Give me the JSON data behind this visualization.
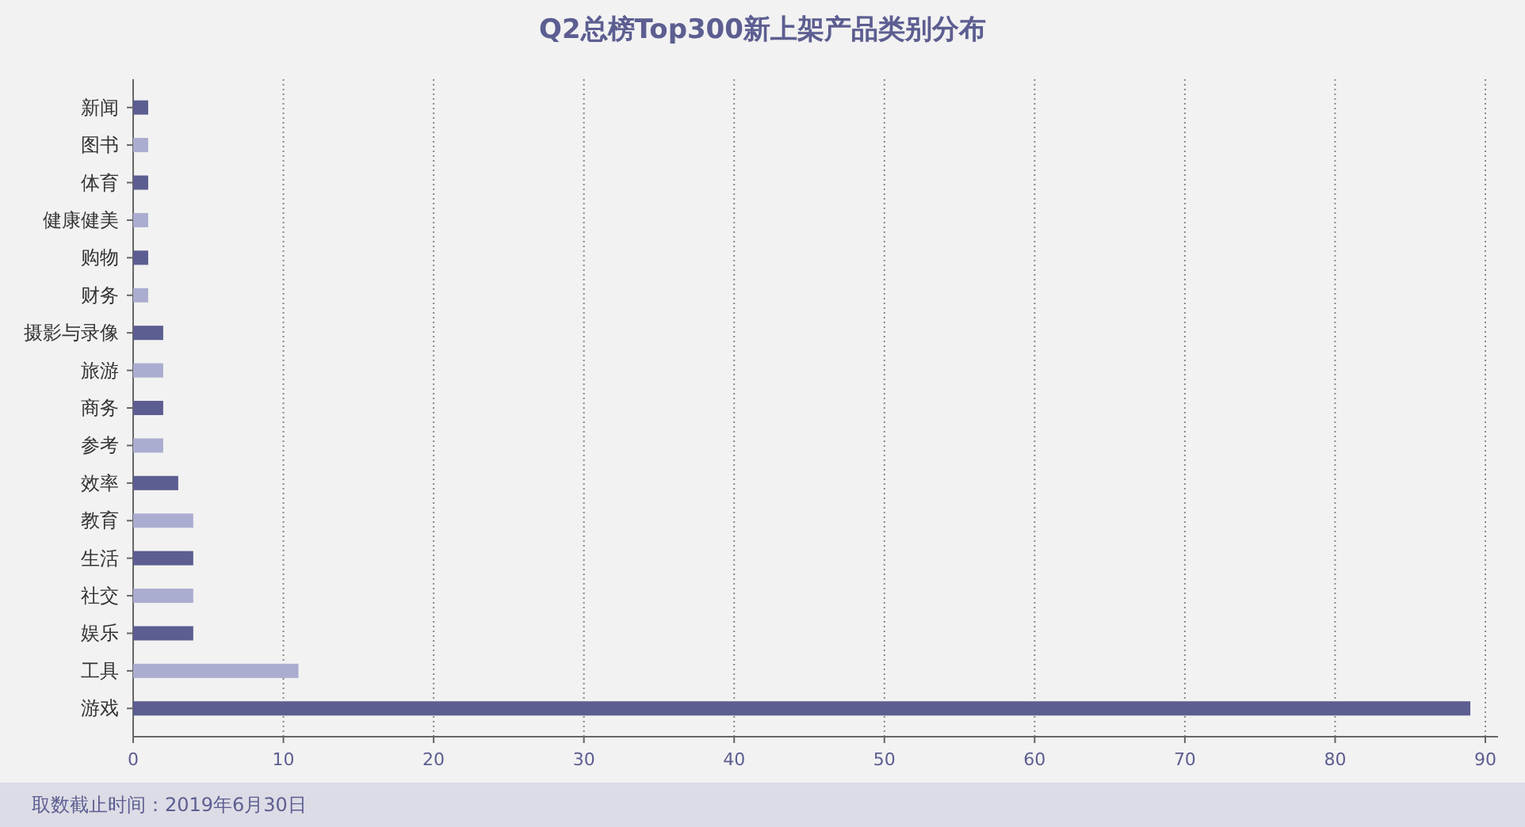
{
  "chart_data": {
    "type": "bar",
    "orientation": "horizontal",
    "title": "Q2总榜Top300新上架产品类别分布",
    "categories": [
      "新闻",
      "图书",
      "体育",
      "健康健美",
      "购物",
      "财务",
      "摄影与录像",
      "旅游",
      "商务",
      "参考",
      "效率",
      "教育",
      "生活",
      "社交",
      "娱乐",
      "工具",
      "游戏"
    ],
    "values": [
      1,
      1,
      1,
      1,
      1,
      1,
      2,
      2,
      2,
      2,
      3,
      4,
      4,
      4,
      4,
      11,
      89
    ],
    "colors": [
      "#5c5e91",
      "#abadd0",
      "#5c5e91",
      "#abadd0",
      "#5c5e91",
      "#abadd0",
      "#5c5e91",
      "#abadd0",
      "#5c5e91",
      "#abadd0",
      "#5c5e91",
      "#abadd0",
      "#5c5e91",
      "#abadd0",
      "#5c5e91",
      "#abadd0",
      "#5c5e91"
    ],
    "xlim": [
      0,
      90
    ],
    "xticks": [
      0,
      10,
      20,
      30,
      40,
      50,
      60,
      70,
      80,
      90
    ],
    "grid": "x",
    "annotations": [
      "取数截止时间：2019年6月30日"
    ]
  }
}
